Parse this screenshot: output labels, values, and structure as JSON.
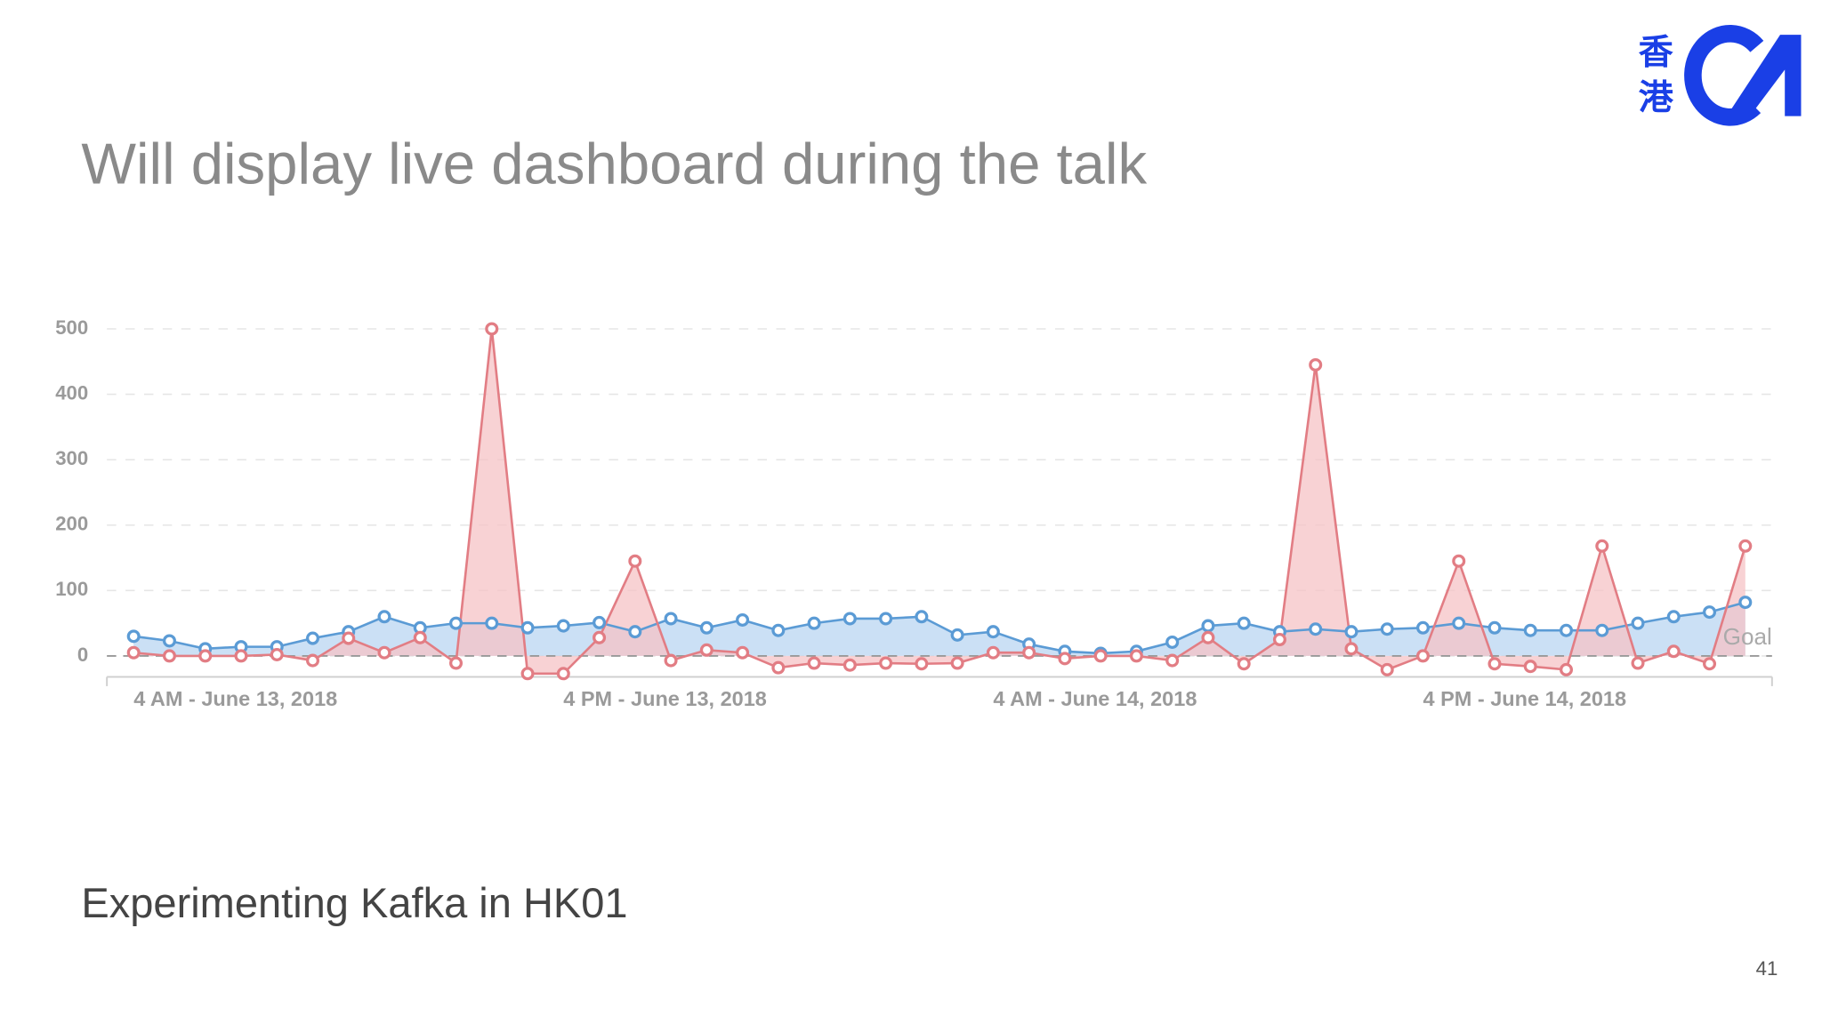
{
  "slide": {
    "title": "Will display live dashboard during the talk",
    "subtitle": "Experimenting Kafka in HK01",
    "page_number": "41",
    "logo_chars": [
      "香",
      "港"
    ]
  },
  "chart_data": {
    "type": "line",
    "categories": [
      "4 AM - June 13, 2018",
      null,
      null,
      null,
      null,
      null,
      null,
      null,
      null,
      null,
      null,
      null,
      "4 PM - June 13, 2018",
      null,
      null,
      null,
      null,
      null,
      null,
      null,
      null,
      null,
      null,
      null,
      "4 AM - June 14, 2018",
      null,
      null,
      null,
      null,
      null,
      null,
      null,
      null,
      null,
      null,
      null,
      "4 PM - June 14, 2018",
      null,
      null,
      null,
      null,
      null,
      null,
      null,
      null,
      null
    ],
    "series": [
      {
        "color": "#5b9bd5",
        "fill": "#b9d5f2",
        "values": [
          30,
          23,
          11,
          14,
          14,
          27,
          37,
          60,
          43,
          50,
          50,
          43,
          46,
          51,
          37,
          57,
          43,
          55,
          39,
          50,
          57,
          57,
          60,
          32,
          37,
          18,
          7,
          4,
          7,
          21,
          46,
          50,
          37,
          41,
          37,
          41,
          43,
          50,
          43,
          39,
          39,
          39,
          50,
          60,
          67,
          82
        ]
      },
      {
        "color": "#e27d84",
        "fill": "#f6c3c6",
        "values": [
          5,
          0,
          0,
          0,
          2,
          -7,
          27,
          5,
          28,
          -11,
          500,
          -27,
          -27,
          28,
          145,
          -7,
          9,
          5,
          -18,
          -11,
          -14,
          -11,
          -12,
          -11,
          5,
          5,
          -4,
          0,
          0,
          -7,
          28,
          -12,
          25,
          445,
          11,
          -21,
          0,
          145,
          -12,
          -16,
          -21,
          168,
          -11,
          7,
          -12,
          168
        ]
      }
    ],
    "ylim": [
      -32,
      520
    ],
    "yticks": [
      0,
      100,
      200,
      300,
      400,
      500
    ],
    "grid": true,
    "goal": 0,
    "goal_label": "Goal"
  }
}
